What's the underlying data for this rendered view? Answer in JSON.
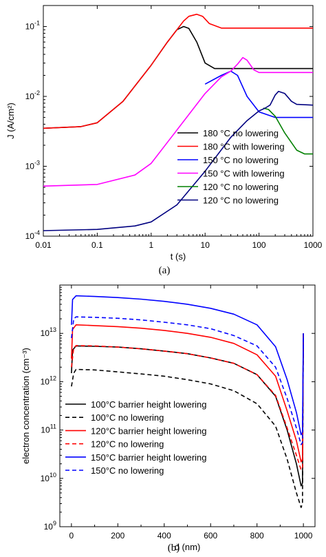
{
  "chart_data": [
    {
      "type": "line",
      "panel_label": "(a)",
      "xlabel": "t (s)",
      "ylabel": "J (A/cm²)",
      "xscale": "log",
      "yscale": "log",
      "xlim": [
        0.01,
        1000
      ],
      "ylim": [
        0.0001,
        0.2
      ],
      "xticks": [
        0.01,
        0.1,
        1,
        10,
        100,
        1000
      ],
      "xtick_labels": [
        "0.01",
        "0.1",
        "1",
        "10",
        "100",
        "1000"
      ],
      "yticks": [
        0.0001,
        0.001,
        0.01,
        0.1
      ],
      "legend_position": "bottom-right",
      "grid": false,
      "series": [
        {
          "name": "180 °C no lowering",
          "color": "#000000",
          "dash": "solid",
          "points": [
            [
              0.01,
              0.0035
            ],
            [
              0.05,
              0.0037
            ],
            [
              0.1,
              0.0042
            ],
            [
              0.3,
              0.0085
            ],
            [
              1,
              0.028
            ],
            [
              2,
              0.06
            ],
            [
              3,
              0.09
            ],
            [
              4,
              0.1
            ],
            [
              5,
              0.094
            ],
            [
              7,
              0.06
            ],
            [
              10,
              0.03
            ],
            [
              15,
              0.025
            ],
            [
              50,
              0.025
            ],
            [
              1000,
              0.025
            ]
          ]
        },
        {
          "name": "180 °C with lowering",
          "color": "#ff0000",
          "dash": "solid",
          "points": [
            [
              0.01,
              0.0035
            ],
            [
              0.05,
              0.0037
            ],
            [
              0.1,
              0.0042
            ],
            [
              0.3,
              0.0085
            ],
            [
              1,
              0.028
            ],
            [
              2,
              0.06
            ],
            [
              3,
              0.09
            ],
            [
              4,
              0.12
            ],
            [
              5,
              0.14
            ],
            [
              7,
              0.15
            ],
            [
              9,
              0.14
            ],
            [
              12,
              0.11
            ],
            [
              20,
              0.095
            ],
            [
              50,
              0.095
            ],
            [
              1000,
              0.095
            ]
          ]
        },
        {
          "name": "150 °C no lowering",
          "color": "#0000ff",
          "dash": "solid",
          "points": [
            [
              10,
              0.015
            ],
            [
              20,
              0.02
            ],
            [
              30,
              0.023
            ],
            [
              40,
              0.02
            ],
            [
              60,
              0.01
            ],
            [
              100,
              0.006
            ],
            [
              200,
              0.005
            ],
            [
              1000,
              0.005
            ]
          ]
        },
        {
          "name": "150 °C with lowering",
          "color": "#ff00ff",
          "dash": "solid",
          "points": [
            [
              0.01,
              0.00052
            ],
            [
              0.1,
              0.00055
            ],
            [
              0.5,
              0.00075
            ],
            [
              1,
              0.0011
            ],
            [
              3,
              0.0033
            ],
            [
              10,
              0.011
            ],
            [
              20,
              0.019
            ],
            [
              30,
              0.023
            ],
            [
              40,
              0.029
            ],
            [
              50,
              0.036
            ],
            [
              60,
              0.033
            ],
            [
              80,
              0.024
            ],
            [
              100,
              0.022
            ],
            [
              1000,
              0.022
            ]
          ]
        },
        {
          "name": "120 °C no lowering",
          "color": "#008000",
          "dash": "solid",
          "points": [
            [
              120,
              0.0068
            ],
            [
              150,
              0.0065
            ],
            [
              200,
              0.0052
            ],
            [
              300,
              0.003
            ],
            [
              500,
              0.0017
            ],
            [
              700,
              0.0015
            ],
            [
              1000,
              0.0015
            ]
          ]
        },
        {
          "name": "120 °C no lowering",
          "color": "#000080",
          "dash": "solid",
          "points": [
            [
              0.01,
              0.00012
            ],
            [
              0.1,
              0.000125
            ],
            [
              0.5,
              0.00014
            ],
            [
              1,
              0.00016
            ],
            [
              3,
              0.00028
            ],
            [
              10,
              0.00085
            ],
            [
              30,
              0.0026
            ],
            [
              60,
              0.0045
            ],
            [
              100,
              0.0062
            ],
            [
              130,
              0.0068
            ],
            [
              160,
              0.0075
            ],
            [
              200,
              0.0105
            ],
            [
              230,
              0.0118
            ],
            [
              300,
              0.011
            ],
            [
              400,
              0.0085
            ],
            [
              500,
              0.0077
            ],
            [
              1000,
              0.0075
            ]
          ]
        }
      ]
    },
    {
      "type": "line",
      "panel_label": "(b)",
      "xlabel": "d (nm)",
      "ylabel": "electron concentration (cm⁻³)",
      "xscale": "linear",
      "yscale": "log",
      "xlim": [
        -50,
        1050
      ],
      "ylim": [
        1000000000,
        100000000000000
      ],
      "xticks": [
        0,
        200,
        400,
        600,
        800,
        1000
      ],
      "xtick_labels": [
        "0",
        "200",
        "400",
        "600",
        "800",
        "1000"
      ],
      "yticks": [
        1000000000,
        10000000000,
        100000000000,
        1000000000000,
        10000000000000
      ],
      "legend_position": "bottom-left",
      "grid": false,
      "series": [
        {
          "name": "100°C barrier height lowering",
          "color": "#000000",
          "dash": "solid",
          "points": [
            [
              0,
              1500000000000.0
            ],
            [
              5,
              4500000000000.0
            ],
            [
              20,
              5500000000000.0
            ],
            [
              100,
              5400000000000.0
            ],
            [
              200,
              5200000000000.0
            ],
            [
              300,
              4800000000000.0
            ],
            [
              400,
              4300000000000.0
            ],
            [
              500,
              3800000000000.0
            ],
            [
              600,
              3100000000000.0
            ],
            [
              700,
              2400000000000.0
            ],
            [
              800,
              1400000000000.0
            ],
            [
              880,
              500000000000.0
            ],
            [
              930,
              100000000000.0
            ],
            [
              970,
              20000000000.0
            ],
            [
              990,
              7000000000.0
            ],
            [
              996,
              8000000000.0
            ],
            [
              1000,
              10000000000000.0
            ]
          ]
        },
        {
          "name": "100°C no lowering",
          "color": "#000000",
          "dash": "dashed",
          "points": [
            [
              0,
              800000000000.0
            ],
            [
              10,
              1500000000000.0
            ],
            [
              20,
              1800000000000.0
            ],
            [
              100,
              1750000000000.0
            ],
            [
              200,
              1600000000000.0
            ],
            [
              300,
              1450000000000.0
            ],
            [
              400,
              1300000000000.0
            ],
            [
              500,
              1100000000000.0
            ],
            [
              600,
              900000000000.0
            ],
            [
              700,
              650000000000.0
            ],
            [
              800,
              350000000000.0
            ],
            [
              880,
              120000000000.0
            ],
            [
              930,
              25000000000.0
            ],
            [
              970,
              5000000000.0
            ],
            [
              990,
              2500000000.0
            ],
            [
              996,
              3000000000.0
            ],
            [
              1000,
              10000000000000.0
            ]
          ]
        },
        {
          "name": "120°C barrier height lowering",
          "color": "#ff0000",
          "dash": "solid",
          "points": [
            [
              0,
              3000000000000.0
            ],
            [
              5,
              12000000000000.0
            ],
            [
              20,
              15000000000000.0
            ],
            [
              100,
              14500000000000.0
            ],
            [
              200,
              13800000000000.0
            ],
            [
              300,
              12800000000000.0
            ],
            [
              400,
              11500000000000.0
            ],
            [
              500,
              10000000000000.0
            ],
            [
              600,
              8300000000000.0
            ],
            [
              700,
              6200000000000.0
            ],
            [
              800,
              3600000000000.0
            ],
            [
              880,
              1300000000000.0
            ],
            [
              930,
              250000000000.0
            ],
            [
              970,
              60000000000.0
            ],
            [
              990,
              22000000000.0
            ],
            [
              996,
              25000000000.0
            ],
            [
              1000,
              10000000000000.0
            ]
          ]
        },
        {
          "name": "120°C no lowering",
          "color": "#ff0000",
          "dash": "dashed",
          "points": [
            [
              0,
              2000000000000.0
            ],
            [
              10,
              5000000000000.0
            ],
            [
              20,
              5600000000000.0
            ],
            [
              100,
              5500000000000.0
            ],
            [
              200,
              5200000000000.0
            ],
            [
              300,
              4800000000000.0
            ],
            [
              400,
              4300000000000.0
            ],
            [
              500,
              3800000000000.0
            ],
            [
              600,
              3100000000000.0
            ],
            [
              700,
              2400000000000.0
            ],
            [
              800,
              1400000000000.0
            ],
            [
              880,
              520000000000.0
            ],
            [
              930,
              110000000000.0
            ],
            [
              970,
              30000000000.0
            ],
            [
              990,
              15000000000.0
            ],
            [
              996,
              17000000000.0
            ],
            [
              1000,
              10000000000000.0
            ]
          ]
        },
        {
          "name": "150°C barrier height lowering",
          "color": "#0000ff",
          "dash": "solid",
          "points": [
            [
              0,
              15000000000000.0
            ],
            [
              5,
              50000000000000.0
            ],
            [
              20,
              60000000000000.0
            ],
            [
              100,
              58000000000000.0
            ],
            [
              200,
              55000000000000.0
            ],
            [
              300,
              51000000000000.0
            ],
            [
              400,
              46000000000000.0
            ],
            [
              500,
              40000000000000.0
            ],
            [
              600,
              33000000000000.0
            ],
            [
              700,
              25000000000000.0
            ],
            [
              800,
              15000000000000.0
            ],
            [
              880,
              5300000000000.0
            ],
            [
              930,
              1100000000000.0
            ],
            [
              970,
              230000000000.0
            ],
            [
              990,
              80000000000.0
            ],
            [
              996,
              90000000000.0
            ],
            [
              1000,
              10000000000000.0
            ]
          ]
        },
        {
          "name": "150°C no lowering",
          "color": "#0000ff",
          "dash": "dashed",
          "points": [
            [
              0,
              8000000000000.0
            ],
            [
              10,
              20000000000000.0
            ],
            [
              20,
              22000000000000.0
            ],
            [
              100,
              21500000000000.0
            ],
            [
              200,
              20500000000000.0
            ],
            [
              300,
              19000000000000.0
            ],
            [
              400,
              17000000000000.0
            ],
            [
              500,
              15000000000000.0
            ],
            [
              600,
              12500000000000.0
            ],
            [
              700,
              9000000000000.0
            ],
            [
              800,
              5500000000000.0
            ],
            [
              880,
              2000000000000.0
            ],
            [
              930,
              450000000000.0
            ],
            [
              970,
              110000000000.0
            ],
            [
              990,
              50000000000.0
            ],
            [
              996,
              55000000000.0
            ],
            [
              1000,
              10000000000000.0
            ]
          ]
        }
      ]
    }
  ]
}
